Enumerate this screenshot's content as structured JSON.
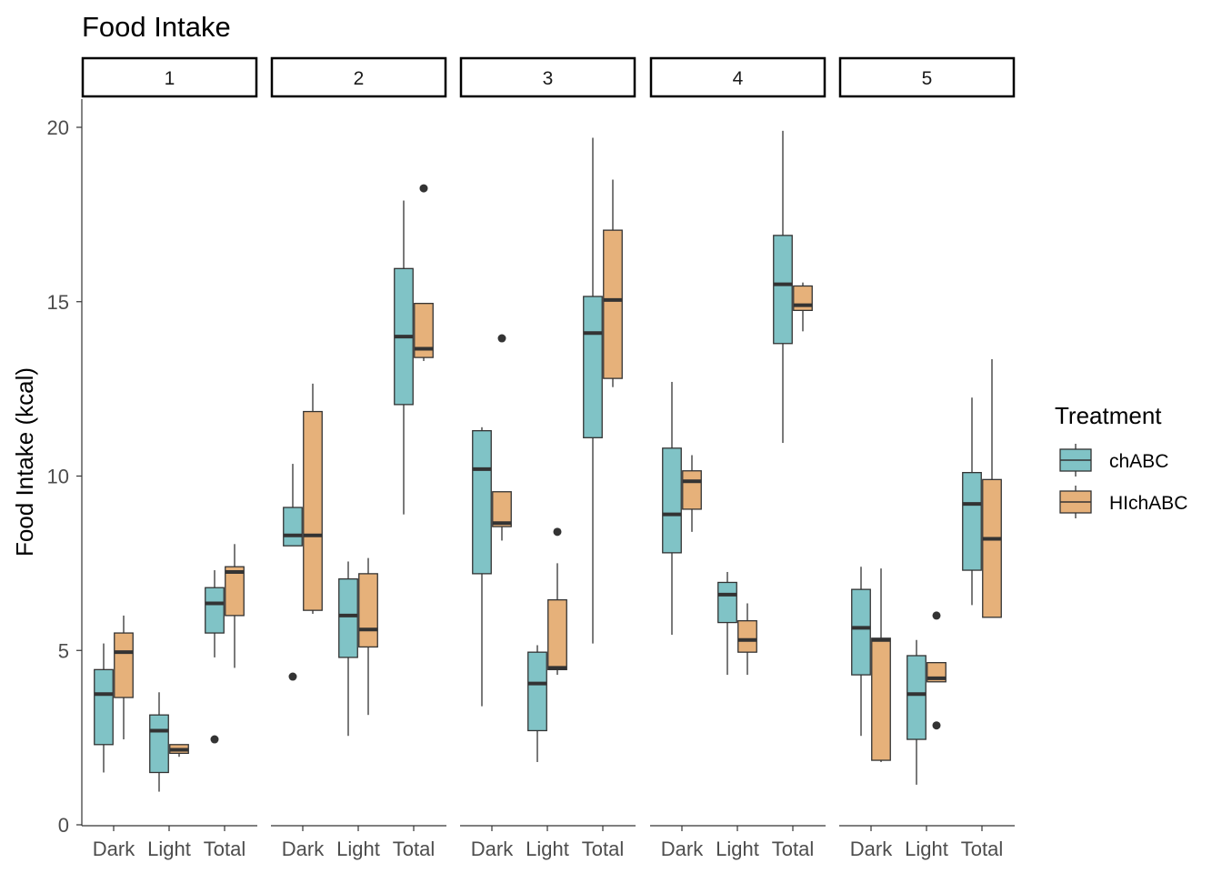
{
  "chart_data": {
    "type": "boxplot",
    "title": "Food Intake",
    "ylabel": "Food Intake (kcal)",
    "xlabel": "",
    "ylim": [
      0,
      21
    ],
    "yticks": [
      0,
      5,
      10,
      15,
      20
    ],
    "grid": false,
    "facets": [
      "1",
      "2",
      "3",
      "4",
      "5"
    ],
    "categories": [
      "Dark",
      "Light",
      "Total"
    ],
    "legend": {
      "title": "Treatment",
      "position": "right",
      "items": [
        {
          "name": "chABC",
          "color": "#80C3C6"
        },
        {
          "name": "HIchABC",
          "color": "#E6B17A"
        }
      ]
    },
    "series": [
      {
        "name": "chABC",
        "color": "#80C3C6",
        "boxes": [
          [
            {
              "facet": "1",
              "category": "Dark",
              "whisker_low": 1.5,
              "q1": 2.3,
              "median": 3.75,
              "q3": 4.45,
              "whisker_high": 5.2,
              "outliers": []
            },
            {
              "facet": "1",
              "category": "Light",
              "whisker_low": 0.95,
              "q1": 1.5,
              "median": 2.7,
              "q3": 3.15,
              "whisker_high": 3.8,
              "outliers": []
            },
            {
              "facet": "1",
              "category": "Total",
              "whisker_low": 4.8,
              "q1": 5.5,
              "median": 6.35,
              "q3": 6.8,
              "whisker_high": 7.3,
              "outliers": [
                2.45
              ]
            }
          ],
          [
            {
              "facet": "2",
              "category": "Dark",
              "whisker_low": 8.0,
              "q1": 8.0,
              "median": 8.3,
              "q3": 9.1,
              "whisker_high": 10.35,
              "outliers": [
                4.25
              ]
            },
            {
              "facet": "2",
              "category": "Light",
              "whisker_low": 2.55,
              "q1": 4.8,
              "median": 6.0,
              "q3": 7.05,
              "whisker_high": 7.55,
              "outliers": []
            },
            {
              "facet": "2",
              "category": "Total",
              "whisker_low": 8.9,
              "q1": 12.05,
              "median": 14.0,
              "q3": 15.95,
              "whisker_high": 17.9,
              "outliers": []
            }
          ],
          [
            {
              "facet": "3",
              "category": "Dark",
              "whisker_low": 3.4,
              "q1": 7.2,
              "median": 10.2,
              "q3": 11.3,
              "whisker_high": 11.4,
              "outliers": []
            },
            {
              "facet": "3",
              "category": "Light",
              "whisker_low": 1.8,
              "q1": 2.7,
              "median": 4.05,
              "q3": 4.95,
              "whisker_high": 5.15,
              "outliers": []
            },
            {
              "facet": "3",
              "category": "Total",
              "whisker_low": 5.2,
              "q1": 11.1,
              "median": 14.1,
              "q3": 15.15,
              "whisker_high": 19.7,
              "outliers": []
            }
          ],
          [
            {
              "facet": "4",
              "category": "Dark",
              "whisker_low": 5.45,
              "q1": 7.8,
              "median": 8.9,
              "q3": 10.8,
              "whisker_high": 12.7,
              "outliers": []
            },
            {
              "facet": "4",
              "category": "Light",
              "whisker_low": 4.3,
              "q1": 5.8,
              "median": 6.6,
              "q3": 6.95,
              "whisker_high": 7.25,
              "outliers": []
            },
            {
              "facet": "4",
              "category": "Total",
              "whisker_low": 10.95,
              "q1": 13.8,
              "median": 15.5,
              "q3": 16.9,
              "whisker_high": 19.9,
              "outliers": []
            }
          ],
          [
            {
              "facet": "5",
              "category": "Dark",
              "whisker_low": 2.55,
              "q1": 4.3,
              "median": 5.65,
              "q3": 6.75,
              "whisker_high": 7.4,
              "outliers": []
            },
            {
              "facet": "5",
              "category": "Light",
              "whisker_low": 1.15,
              "q1": 2.45,
              "median": 3.75,
              "q3": 4.85,
              "whisker_high": 5.3,
              "outliers": []
            },
            {
              "facet": "5",
              "category": "Total",
              "whisker_low": 6.3,
              "q1": 7.3,
              "median": 9.2,
              "q3": 10.1,
              "whisker_high": 12.25,
              "outliers": []
            }
          ]
        ]
      },
      {
        "name": "HIchABC",
        "color": "#E6B17A",
        "boxes": [
          [
            {
              "facet": "1",
              "category": "Dark",
              "whisker_low": 2.45,
              "q1": 3.65,
              "median": 4.95,
              "q3": 5.5,
              "whisker_high": 6.0,
              "outliers": []
            },
            {
              "facet": "1",
              "category": "Light",
              "whisker_low": 1.95,
              "q1": 2.05,
              "median": 2.15,
              "q3": 2.3,
              "whisker_high": 2.3,
              "outliers": []
            },
            {
              "facet": "1",
              "category": "Total",
              "whisker_low": 4.5,
              "q1": 6.0,
              "median": 7.25,
              "q3": 7.4,
              "whisker_high": 8.05,
              "outliers": []
            }
          ],
          [
            {
              "facet": "2",
              "category": "Dark",
              "whisker_low": 6.05,
              "q1": 6.15,
              "median": 8.3,
              "q3": 11.85,
              "whisker_high": 12.65,
              "outliers": []
            },
            {
              "facet": "2",
              "category": "Light",
              "whisker_low": 3.15,
              "q1": 5.1,
              "median": 5.6,
              "q3": 7.2,
              "whisker_high": 7.65,
              "outliers": []
            },
            {
              "facet": "2",
              "category": "Total",
              "whisker_low": 13.3,
              "q1": 13.4,
              "median": 13.65,
              "q3": 14.95,
              "whisker_high": 14.95,
              "outliers": [
                18.25
              ]
            }
          ],
          [
            {
              "facet": "3",
              "category": "Dark",
              "whisker_low": 8.15,
              "q1": 8.55,
              "median": 8.65,
              "q3": 9.55,
              "whisker_high": 9.55,
              "outliers": [
                13.95
              ]
            },
            {
              "facet": "3",
              "category": "Light",
              "whisker_low": 4.3,
              "q1": 4.45,
              "median": 4.5,
              "q3": 6.45,
              "whisker_high": 7.5,
              "outliers": [
                8.4
              ]
            },
            {
              "facet": "3",
              "category": "Total",
              "whisker_low": 12.55,
              "q1": 12.8,
              "median": 15.05,
              "q3": 17.05,
              "whisker_high": 18.5,
              "outliers": []
            }
          ],
          [
            {
              "facet": "4",
              "category": "Dark",
              "whisker_low": 8.4,
              "q1": 9.05,
              "median": 9.85,
              "q3": 10.15,
              "whisker_high": 10.6,
              "outliers": []
            },
            {
              "facet": "4",
              "category": "Light",
              "whisker_low": 4.3,
              "q1": 4.95,
              "median": 5.3,
              "q3": 5.85,
              "whisker_high": 6.35,
              "outliers": []
            },
            {
              "facet": "4",
              "category": "Total",
              "whisker_low": 14.15,
              "q1": 14.75,
              "median": 14.9,
              "q3": 15.45,
              "whisker_high": 15.55,
              "outliers": []
            }
          ],
          [
            {
              "facet": "5",
              "category": "Dark",
              "whisker_low": 1.8,
              "q1": 1.85,
              "median": 5.3,
              "q3": 5.35,
              "whisker_high": 7.35,
              "outliers": []
            },
            {
              "facet": "5",
              "category": "Light",
              "whisker_low": 4.1,
              "q1": 4.1,
              "median": 4.2,
              "q3": 4.65,
              "whisker_high": 4.65,
              "outliers": [
                6.0,
                2.85
              ]
            },
            {
              "facet": "5",
              "category": "Total",
              "whisker_low": 5.95,
              "q1": 5.95,
              "median": 8.2,
              "q3": 9.9,
              "whisker_high": 13.35,
              "outliers": []
            }
          ]
        ]
      }
    ]
  }
}
